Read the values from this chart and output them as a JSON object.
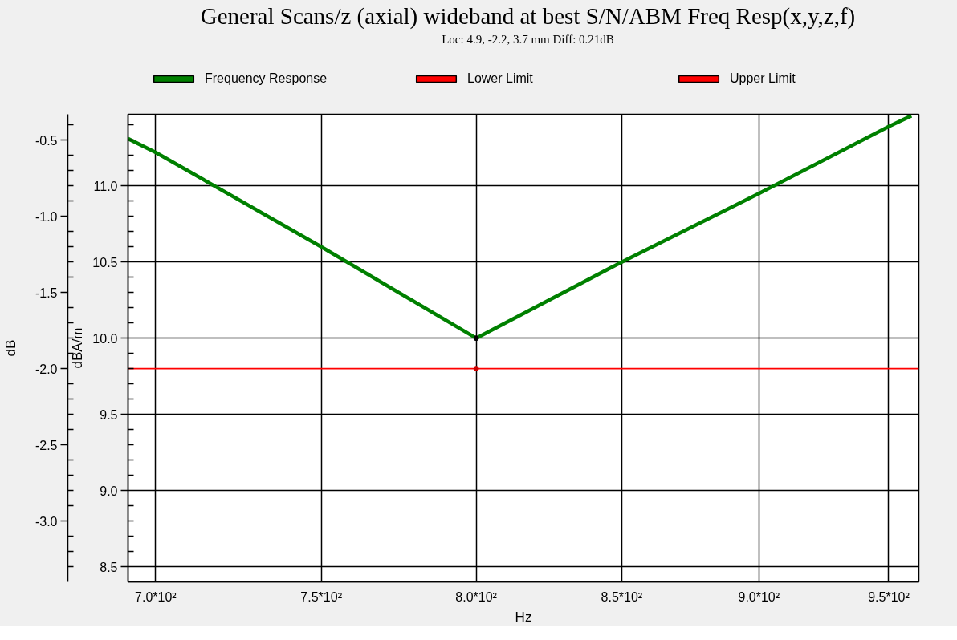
{
  "chart_data": {
    "type": "line",
    "title": "General Scans/z (axial) wideband at best S/N/ABM Freq Resp(x,y,z,f)",
    "subtitle": "Loc: 4.9, -2.2, 3.7 mm Diff: 0.21dB",
    "xlabel": "Hz",
    "ylabel": "dBA/m",
    "y2label": "dB",
    "log": "x",
    "xlim": [
      692,
      962
    ],
    "xticks": [
      {
        "value": 700,
        "label": "7.0*10²"
      },
      {
        "value": 750,
        "label": "7.5*10²"
      },
      {
        "value": 800,
        "label": "8.0*10²"
      },
      {
        "value": 850,
        "label": "8.5*10²"
      },
      {
        "value": 900,
        "label": "9.0*10²"
      },
      {
        "value": 950,
        "label": "9.5*10²"
      }
    ],
    "ylim": [
      8.4,
      11.47
    ],
    "yticks": [
      8.5,
      {
        "value": 8.6,
        "label": null
      },
      {
        "value": 8.7,
        "label": null
      },
      {
        "value": 8.8,
        "label": null
      },
      {
        "value": 8.9,
        "label": null
      },
      {
        "value": 9,
        "label": "9.0"
      },
      {
        "value": 9.1,
        "label": null
      },
      {
        "value": 9.2,
        "label": null
      },
      {
        "value": 9.3,
        "label": null
      },
      {
        "value": 9.4,
        "label": null
      },
      9.5,
      {
        "value": 9.6,
        "label": null
      },
      {
        "value": 9.7,
        "label": null
      },
      {
        "value": 9.8,
        "label": null
      },
      {
        "value": 9.9,
        "label": null
      },
      {
        "value": 10,
        "label": "10.0"
      },
      {
        "value": 10.1,
        "label": null
      },
      {
        "value": 10.2,
        "label": null
      },
      {
        "value": 10.3,
        "label": null
      },
      {
        "value": 10.4,
        "label": null
      },
      10.5,
      {
        "value": 10.6,
        "label": null
      },
      {
        "value": 10.7,
        "label": null
      },
      {
        "value": 10.8,
        "label": null
      },
      {
        "value": 10.9,
        "label": null
      },
      {
        "value": 11,
        "label": "11.0"
      },
      {
        "value": 11.1,
        "label": null
      },
      {
        "value": 11.2,
        "label": null
      },
      {
        "value": 11.3,
        "label": null
      },
      {
        "value": 11.4,
        "label": null
      }
    ],
    "y2lim": [
      -3.4,
      -0.33
    ],
    "y2ticks": [
      {
        "value": -3.3,
        "label": null
      },
      {
        "value": -3.2,
        "label": null
      },
      {
        "value": -3.1,
        "label": null
      },
      {
        "value": -3,
        "label": "-3.0"
      },
      {
        "value": -2.9,
        "label": null
      },
      {
        "value": -2.8,
        "label": null
      },
      {
        "value": -2.7,
        "label": null
      },
      {
        "value": -2.6,
        "label": null
      },
      -2.5,
      {
        "value": -2.4,
        "label": null
      },
      {
        "value": -2.3,
        "label": null
      },
      {
        "value": -2.2,
        "label": null
      },
      {
        "value": -2.1,
        "label": null
      },
      {
        "value": -2,
        "label": "-2.0"
      },
      {
        "value": -1.9,
        "label": null
      },
      {
        "value": -1.8,
        "label": null
      },
      {
        "value": -1.7,
        "label": null
      },
      {
        "value": -1.6,
        "label": null
      },
      -1.5,
      {
        "value": -1.4,
        "label": null
      },
      {
        "value": -1.3,
        "label": null
      },
      {
        "value": -1.2,
        "label": null
      },
      {
        "value": -1.1,
        "label": null
      },
      {
        "value": -1,
        "label": "-1.0"
      },
      {
        "value": -0.9,
        "label": null
      },
      {
        "value": -0.8,
        "label": null
      },
      {
        "value": -0.7,
        "label": null
      },
      {
        "value": -0.6,
        "label": null
      },
      -0.5,
      {
        "value": -0.4,
        "label": null
      }
    ],
    "grid": true,
    "legend": "top",
    "series": [
      {
        "name": "Frequency Response",
        "color": "#008000",
        "x": [
          692,
          700,
          750,
          800,
          850,
          900,
          950,
          959
        ],
        "values": [
          11.31,
          11.22,
          10.6,
          10.0,
          10.5,
          10.95,
          11.39,
          11.46
        ]
      },
      {
        "name": "Lower Limit",
        "color": "#ff0000",
        "axis": "y2",
        "x": [
          692,
          962
        ],
        "values": [
          -2.0,
          -2.0
        ]
      },
      {
        "name": "Upper Limit",
        "color": "#ff0000",
        "axis": "y2"
      },
      {
        "type": "scatter",
        "marker": "circle",
        "color": "#000000",
        "x": [
          800
        ],
        "values": [
          10.0
        ]
      },
      {
        "type": "scatter",
        "marker": "circle",
        "color": "#cc0000",
        "axis": "y2",
        "x": [
          800
        ],
        "values": [
          -2.0
        ]
      }
    ]
  }
}
